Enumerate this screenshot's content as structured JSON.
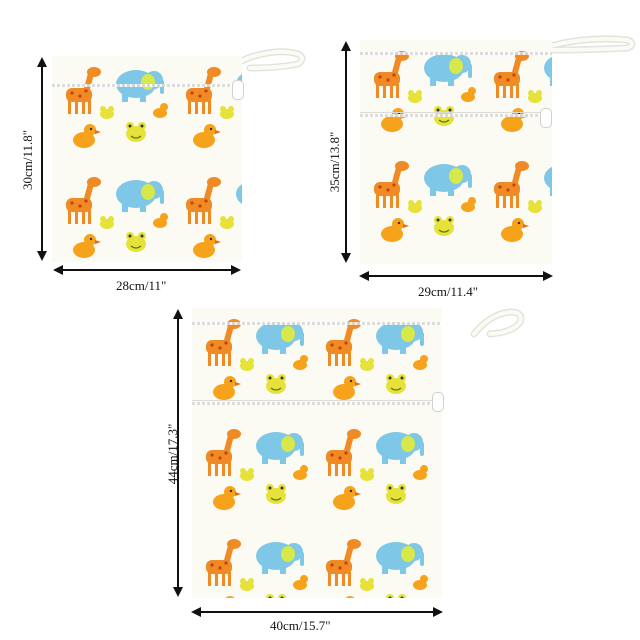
{
  "colors": {
    "background": "#ffffff",
    "fabric": "#fbfaf3",
    "giraffe": "#f08a24",
    "giraffe_spots": "#c2410c",
    "elephant": "#7fc7e6",
    "elephant_ear": "#d6e84a",
    "frog": "#e6e23a",
    "duck": "#f7a21b",
    "arrow": "#111111"
  },
  "products": [
    {
      "name": "small-bag",
      "height_label": "30cm/11.8\"",
      "width_label": "28cm/11\""
    },
    {
      "name": "medium-bag",
      "height_label": "35cm/13.8\"",
      "width_label": "29cm/11.4\""
    },
    {
      "name": "large-bag",
      "height_label": "44cm/17.3\"",
      "width_label": "40cm/15.7\""
    }
  ],
  "print_motifs": [
    "giraffe",
    "elephant",
    "frog",
    "duck"
  ]
}
